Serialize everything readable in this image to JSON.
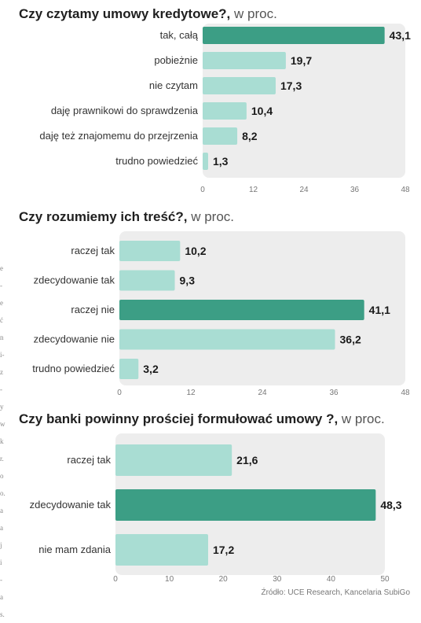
{
  "colors": {
    "panel": "#ededed",
    "bar": "#a9ddd3",
    "bar_highlight": "#3c9e85"
  },
  "side_fragments": [
    "e",
    "-",
    "e",
    "ć",
    "n",
    "i-",
    "z",
    "-",
    "y",
    "w",
    "k",
    "r.",
    "o",
    "o.",
    "a",
    "a",
    "j",
    "i",
    "-",
    "a",
    "s."
  ],
  "chart_data": [
    {
      "type": "bar",
      "orientation": "horizontal",
      "title": "Czy czytamy umowy kredytowe?,",
      "unit": "w proc.",
      "categories": [
        "tak, całą",
        "pobieżnie",
        "nie czytam",
        "daję prawnikowi do sprawdzenia",
        "daję też znajomemu do przejrzenia",
        "trudno powiedzieć"
      ],
      "values": [
        43.1,
        19.7,
        17.3,
        10.4,
        8.2,
        1.3
      ],
      "value_labels": [
        "43,1",
        "19,7",
        "17,3",
        "10,4",
        "8,2",
        "1,3"
      ],
      "highlight_index": 0,
      "xlim": [
        0,
        48
      ],
      "ticks": [
        0,
        12,
        24,
        36,
        48
      ],
      "grid": false
    },
    {
      "type": "bar",
      "orientation": "horizontal",
      "title": "Czy rozumiemy ich treść?,",
      "unit": "w proc.",
      "categories": [
        "raczej tak",
        "zdecydowanie tak",
        "raczej nie",
        "zdecydowanie nie",
        "trudno powiedzieć"
      ],
      "values": [
        10.2,
        9.3,
        41.1,
        36.2,
        3.2
      ],
      "value_labels": [
        "10,2",
        "9,3",
        "41,1",
        "36,2",
        "3,2"
      ],
      "highlight_index": 2,
      "xlim": [
        0,
        48
      ],
      "ticks": [
        0,
        12,
        24,
        36,
        48
      ],
      "grid": false
    },
    {
      "type": "bar",
      "orientation": "horizontal",
      "title": "Czy banki powinny prościej formułować umowy ?,",
      "unit": "w proc.",
      "categories": [
        "raczej tak",
        "zdecydowanie tak",
        "nie mam zdania"
      ],
      "values": [
        21.6,
        48.3,
        17.2
      ],
      "value_labels": [
        "21,6",
        "48,3",
        "17,2"
      ],
      "highlight_index": 1,
      "xlim": [
        0,
        50
      ],
      "ticks": [
        0,
        10,
        20,
        30,
        40,
        50
      ],
      "grid": false
    }
  ],
  "source": "Źródło: UCE Research, Kancelaria SubiGo"
}
